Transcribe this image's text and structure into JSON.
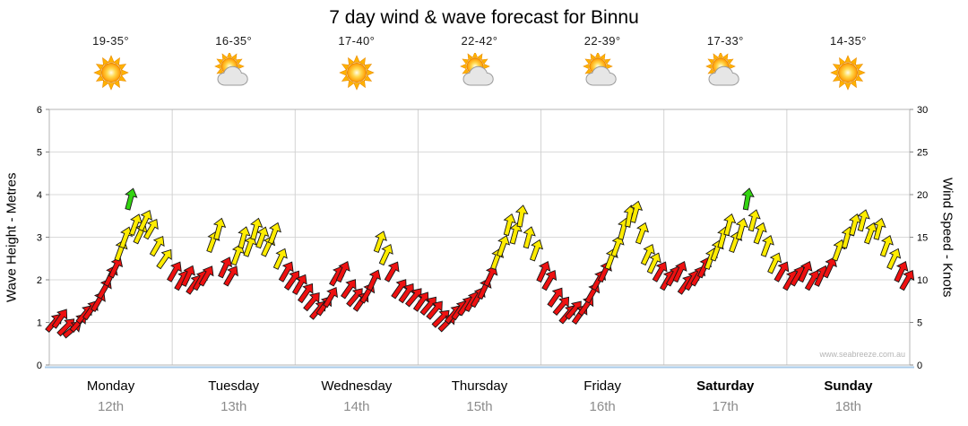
{
  "title": "7 day wind & wave forecast for Binnu",
  "watermark": "www.seabreeze.com.au",
  "axes": {
    "left_label": "Wave Height - Metres",
    "right_label": "Wind Speed - Knots",
    "left_ticks": [
      "0",
      "1",
      "2",
      "3",
      "4",
      "5",
      "6"
    ],
    "right_ticks": [
      "0",
      "5",
      "10",
      "15",
      "20",
      "25",
      "30"
    ]
  },
  "days": [
    {
      "name": "Monday",
      "date": "12th",
      "temp": "19-35°",
      "icon": "sunny",
      "weekend": false
    },
    {
      "name": "Tuesday",
      "date": "13th",
      "temp": "16-35°",
      "icon": "partly-cloudy",
      "weekend": false
    },
    {
      "name": "Wednesday",
      "date": "14th",
      "temp": "17-40°",
      "icon": "sunny",
      "weekend": false
    },
    {
      "name": "Thursday",
      "date": "15th",
      "temp": "22-42°",
      "icon": "partly-cloudy",
      "weekend": false
    },
    {
      "name": "Friday",
      "date": "16th",
      "temp": "22-39°",
      "icon": "partly-cloudy",
      "weekend": false
    },
    {
      "name": "Saturday",
      "date": "17th",
      "temp": "17-33°",
      "icon": "partly-cloudy",
      "weekend": true
    },
    {
      "name": "Sunday",
      "date": "18th",
      "temp": "14-35°",
      "icon": "sunny",
      "weekend": true
    }
  ],
  "chart_data": {
    "type": "scatter",
    "subtype": "wind-arrow-forecast",
    "title": "7 day wind & wave forecast for Binnu",
    "x_axis": {
      "categories": [
        "Monday 12th",
        "Tuesday 13th",
        "Wednesday 14th",
        "Thursday 15th",
        "Friday 16th",
        "Saturday 17th",
        "Sunday 18th"
      ],
      "range_days": [
        0,
        7
      ]
    },
    "y_left": {
      "label": "Wave Height - Metres",
      "range": [
        0,
        6
      ],
      "ticks": [
        0,
        1,
        2,
        3,
        4,
        5,
        6
      ]
    },
    "y_right": {
      "label": "Wind Speed - Knots",
      "range": [
        0,
        30
      ],
      "ticks": [
        0,
        5,
        10,
        15,
        20,
        25,
        30
      ]
    },
    "grid": true,
    "legend": false,
    "palette": {
      "light": "#ee1111",
      "moderate": "#ffec00",
      "fresh": "#33d411",
      "outline": "#161616"
    },
    "thresholds": {
      "moderate_min": 12,
      "fresh_min": 19
    },
    "series": [
      {
        "name": "Wind speed & direction",
        "units": "knots",
        "point_format": [
          "day_fraction (0=Mon start, 7=Sun end)",
          "speed_knots",
          "direction_deg_cw_from_up"
        ],
        "points": [
          [
            0.04,
            5,
            40
          ],
          [
            0.09,
            5.5,
            35
          ],
          [
            0.14,
            4.5,
            45
          ],
          [
            0.19,
            4.2,
            50
          ],
          [
            0.24,
            5,
            40
          ],
          [
            0.29,
            6,
            40
          ],
          [
            0.34,
            6.5,
            35
          ],
          [
            0.4,
            7.5,
            30
          ],
          [
            0.45,
            9,
            30
          ],
          [
            0.5,
            10.5,
            25
          ],
          [
            0.54,
            11.5,
            25
          ],
          [
            0.58,
            13.5,
            20
          ],
          [
            0.62,
            15,
            20
          ],
          [
            0.66,
            19.5,
            15
          ],
          [
            0.7,
            16.5,
            20
          ],
          [
            0.74,
            15.5,
            25
          ],
          [
            0.78,
            17,
            25
          ],
          [
            0.83,
            16,
            30
          ],
          [
            0.88,
            14,
            30
          ],
          [
            0.94,
            12.5,
            35
          ],
          [
            1.02,
            11,
            30
          ],
          [
            1.08,
            10,
            30
          ],
          [
            1.13,
            10.5,
            25
          ],
          [
            1.18,
            9.5,
            35
          ],
          [
            1.23,
            10,
            30
          ],
          [
            1.28,
            10.5,
            30
          ],
          [
            1.33,
            14.5,
            20
          ],
          [
            1.38,
            16,
            15
          ],
          [
            1.43,
            11.5,
            25
          ],
          [
            1.48,
            10.5,
            30
          ],
          [
            1.53,
            13,
            20
          ],
          [
            1.58,
            15,
            15
          ],
          [
            1.63,
            14,
            20
          ],
          [
            1.68,
            16,
            15
          ],
          [
            1.73,
            15,
            20
          ],
          [
            1.78,
            14,
            25
          ],
          [
            1.83,
            15.5,
            20
          ],
          [
            1.88,
            12.5,
            25
          ],
          [
            1.93,
            11,
            30
          ],
          [
            1.98,
            10,
            35
          ],
          [
            2.04,
            9.5,
            30
          ],
          [
            2.09,
            8.5,
            35
          ],
          [
            2.14,
            7.5,
            40
          ],
          [
            2.19,
            6.5,
            40
          ],
          [
            2.24,
            7,
            35
          ],
          [
            2.29,
            8,
            30
          ],
          [
            2.34,
            10.5,
            30
          ],
          [
            2.39,
            11,
            25
          ],
          [
            2.44,
            9,
            35
          ],
          [
            2.49,
            8,
            40
          ],
          [
            2.54,
            7.5,
            35
          ],
          [
            2.59,
            8.5,
            30
          ],
          [
            2.64,
            10,
            25
          ],
          [
            2.69,
            14.5,
            20
          ],
          [
            2.74,
            13,
            25
          ],
          [
            2.79,
            11,
            30
          ],
          [
            2.85,
            9,
            35
          ],
          [
            2.91,
            8.5,
            35
          ],
          [
            2.97,
            8,
            40
          ],
          [
            3.03,
            7.5,
            35
          ],
          [
            3.09,
            7,
            40
          ],
          [
            3.14,
            6.5,
            40
          ],
          [
            3.19,
            5.5,
            45
          ],
          [
            3.24,
            5,
            45
          ],
          [
            3.29,
            6,
            40
          ],
          [
            3.34,
            6.5,
            35
          ],
          [
            3.39,
            7,
            35
          ],
          [
            3.44,
            7.5,
            30
          ],
          [
            3.49,
            8,
            30
          ],
          [
            3.54,
            9,
            25
          ],
          [
            3.59,
            10.5,
            25
          ],
          [
            3.64,
            12.5,
            20
          ],
          [
            3.69,
            14,
            20
          ],
          [
            3.74,
            16.5,
            15
          ],
          [
            3.79,
            15.5,
            15
          ],
          [
            3.84,
            17.5,
            10
          ],
          [
            3.9,
            15,
            15
          ],
          [
            3.96,
            13.5,
            20
          ],
          [
            4.02,
            11,
            25
          ],
          [
            4.07,
            10,
            30
          ],
          [
            4.12,
            8,
            35
          ],
          [
            4.17,
            7,
            40
          ],
          [
            4.22,
            6,
            40
          ],
          [
            4.27,
            6.5,
            40
          ],
          [
            4.32,
            6,
            35
          ],
          [
            4.37,
            7,
            35
          ],
          [
            4.42,
            8.5,
            30
          ],
          [
            4.47,
            10,
            30
          ],
          [
            4.52,
            11,
            25
          ],
          [
            4.57,
            12.5,
            20
          ],
          [
            4.62,
            14,
            20
          ],
          [
            4.67,
            16,
            15
          ],
          [
            4.72,
            17.5,
            10
          ],
          [
            4.77,
            18,
            15
          ],
          [
            4.82,
            15.5,
            20
          ],
          [
            4.87,
            13,
            25
          ],
          [
            4.92,
            12,
            25
          ],
          [
            4.97,
            11,
            30
          ],
          [
            5.03,
            10,
            30
          ],
          [
            5.08,
            10.5,
            30
          ],
          [
            5.13,
            11,
            25
          ],
          [
            5.18,
            9.5,
            35
          ],
          [
            5.23,
            10,
            30
          ],
          [
            5.28,
            10.5,
            30
          ],
          [
            5.33,
            11.5,
            25
          ],
          [
            5.38,
            12.5,
            20
          ],
          [
            5.43,
            13.5,
            20
          ],
          [
            5.48,
            15,
            15
          ],
          [
            5.53,
            16.5,
            15
          ],
          [
            5.58,
            14.5,
            20
          ],
          [
            5.63,
            16,
            15
          ],
          [
            5.68,
            19.5,
            10
          ],
          [
            5.73,
            17,
            15
          ],
          [
            5.78,
            15.5,
            20
          ],
          [
            5.84,
            14,
            20
          ],
          [
            5.9,
            12,
            25
          ],
          [
            5.96,
            11,
            30
          ],
          [
            6.03,
            10,
            30
          ],
          [
            6.09,
            10.5,
            30
          ],
          [
            6.15,
            11,
            25
          ],
          [
            6.21,
            10,
            30
          ],
          [
            6.28,
            10.5,
            25
          ],
          [
            6.35,
            11.5,
            25
          ],
          [
            6.42,
            13.5,
            20
          ],
          [
            6.49,
            15,
            15
          ],
          [
            6.55,
            16.5,
            15
          ],
          [
            6.62,
            17,
            15
          ],
          [
            6.68,
            15.5,
            20
          ],
          [
            6.75,
            16,
            15
          ],
          [
            6.81,
            14,
            20
          ],
          [
            6.87,
            12.5,
            25
          ],
          [
            6.93,
            11,
            25
          ],
          [
            6.98,
            10,
            30
          ]
        ]
      }
    ]
  }
}
